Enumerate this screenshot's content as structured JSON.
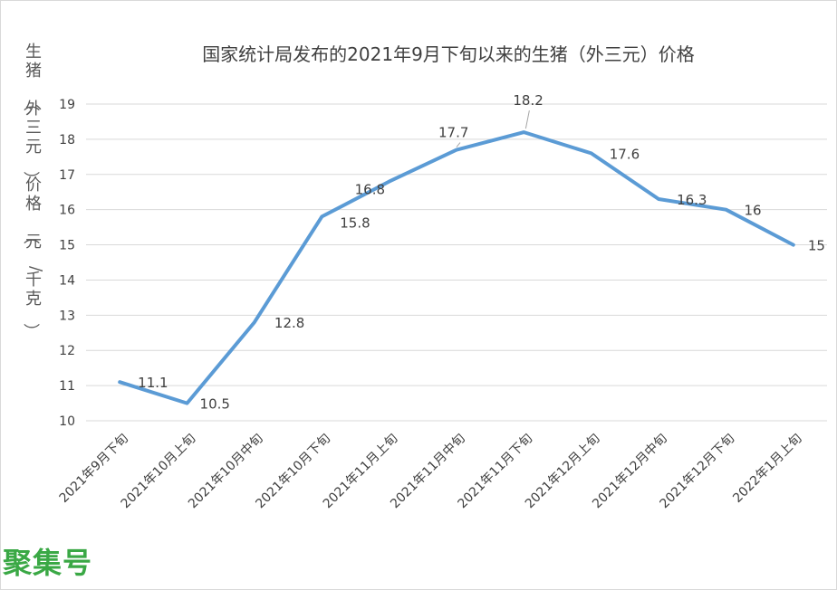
{
  "chart_data": {
    "type": "line",
    "title": "国家统计局发布的2021年9月下旬以来的生猪（外三元）价格",
    "xlabel": "",
    "ylabel": "生猪（外三元）价格（元/千克）",
    "categories": [
      "2021年9月下旬",
      "2021年10月上旬",
      "2021年10月中旬",
      "2021年10月下旬",
      "2021年11月上旬",
      "2021年11月中旬",
      "2021年11月下旬",
      "2021年12月上旬",
      "2021年12月中旬",
      "2021年12月下旬",
      "2022年1月上旬"
    ],
    "series": [
      {
        "values": [
          11.1,
          10.5,
          12.8,
          15.8,
          16.8,
          17.7,
          18.2,
          17.6,
          16.3,
          16,
          15
        ],
        "data_labels": [
          "11.1",
          "10.5",
          "12.8",
          "15.8",
          "16.8",
          "17.7",
          "18.2",
          "17.6",
          "16.3",
          "16",
          "15"
        ]
      }
    ],
    "yticks": [
      "10",
      "11",
      "12",
      "13",
      "14",
      "15",
      "16",
      "17",
      "18",
      "19"
    ],
    "ylim": [
      10,
      19
    ],
    "grid": true,
    "legend": "none",
    "colors": {
      "line": "#5b9bd5",
      "grid": "#d9d9d9",
      "text": "#404040"
    }
  },
  "watermark": "聚集号"
}
